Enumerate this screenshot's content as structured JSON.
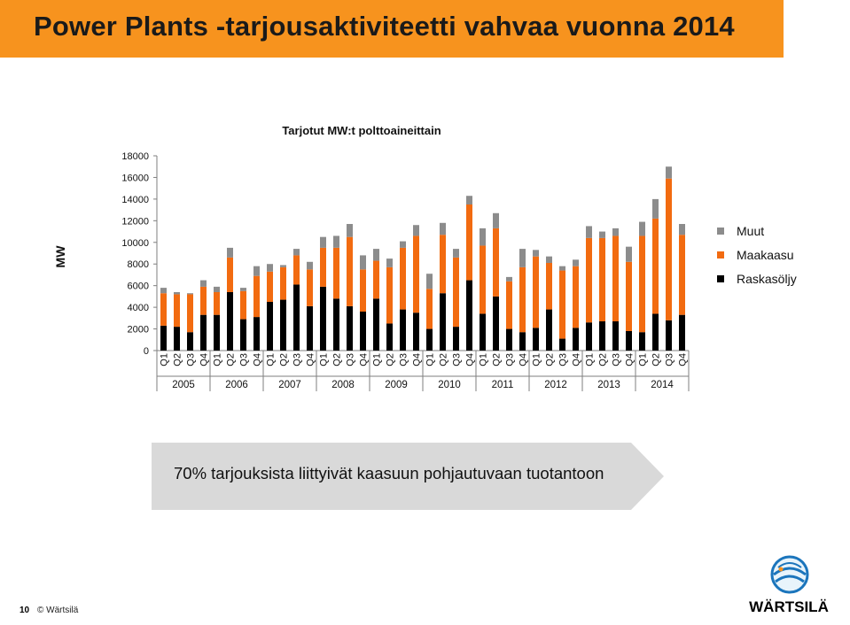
{
  "slide": {
    "title": "Power Plants -tarjousaktiviteetti vahvaa vuonna 2014",
    "callout": "70% tarjouksista liittyivät kaasuun pohjautuvaan tuotantoon",
    "page_number": "10",
    "copyright": "© Wärtsilä",
    "brand": "WÄRTSILÄ",
    "accent_color": "#f7931e"
  },
  "chart_data": {
    "type": "bar",
    "stacked": true,
    "title": "Tarjotut MW:t polttoaineittain",
    "ylabel": "MW",
    "ylim": [
      0,
      18000
    ],
    "yticks": [
      "18000",
      "16000",
      "14000",
      "12000",
      "10000",
      "8000",
      "6000",
      "4000",
      "2000",
      "0"
    ],
    "quarters": [
      "Q1",
      "Q2",
      "Q3",
      "Q4"
    ],
    "years": [
      "2005",
      "2006",
      "2007",
      "2008",
      "2009",
      "2010",
      "2011",
      "2012",
      "2013",
      "2014"
    ],
    "legend_position": "right",
    "series": [
      {
        "name": "Raskasöljy",
        "color": "#000000",
        "values": [
          2300,
          2200,
          1700,
          3300,
          3300,
          5400,
          2900,
          3100,
          4500,
          4700,
          6100,
          4100,
          5900,
          4800,
          4100,
          3600,
          4800,
          2500,
          3800,
          3500,
          2000,
          5300,
          2200,
          6500,
          3400,
          5000,
          2000,
          1700,
          2100,
          3800,
          1100,
          2100,
          2600,
          2700,
          2700,
          1800,
          1700,
          3400,
          2800,
          3300
        ]
      },
      {
        "name": "Maakaasu",
        "color": "#f26b10",
        "values": [
          3000,
          3000,
          3500,
          2600,
          2100,
          3200,
          2600,
          3800,
          2800,
          3000,
          2700,
          3400,
          3600,
          4700,
          6400,
          3900,
          3500,
          5200,
          5700,
          7100,
          3700,
          5400,
          6400,
          7000,
          6300,
          6300,
          4400,
          6000,
          6600,
          4300,
          6300,
          5700,
          7800,
          7700,
          7900,
          6400,
          8900,
          8800,
          13100,
          7400
        ]
      },
      {
        "name": "Muut",
        "color": "#8c8c8c",
        "values": [
          500,
          200,
          100,
          600,
          500,
          900,
          300,
          900,
          700,
          200,
          600,
          700,
          1000,
          1100,
          1200,
          1300,
          1100,
          800,
          600,
          1000,
          1400,
          1100,
          800,
          800,
          1600,
          1400,
          400,
          1700,
          600,
          600,
          400,
          600,
          1100,
          600,
          700,
          1400,
          1300,
          1800,
          1100,
          1000
        ]
      }
    ]
  }
}
